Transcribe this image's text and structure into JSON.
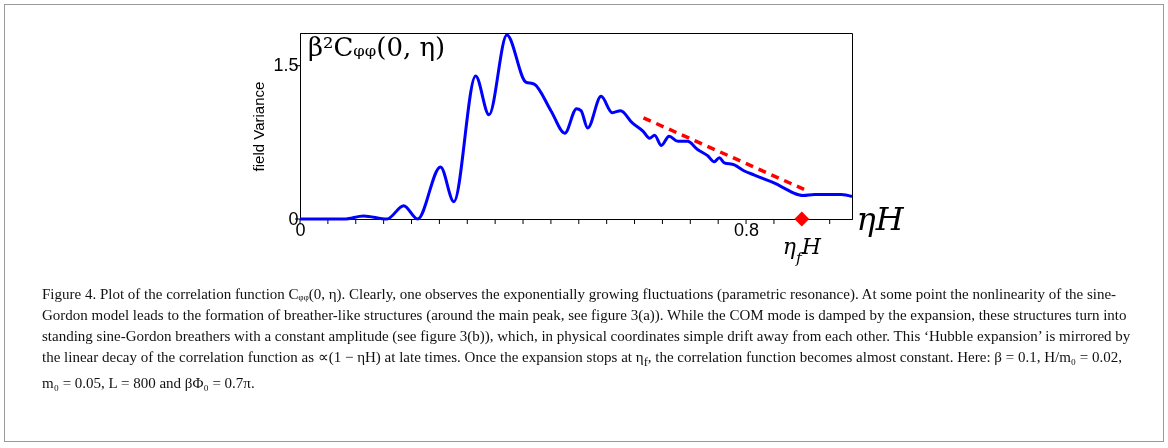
{
  "chart_data": {
    "type": "line",
    "xlabel": "ηH",
    "ylabel": "field Variance",
    "xlim": [
      0,
      0.99
    ],
    "ylim": [
      0,
      1.82
    ],
    "xticks": [
      0,
      {
        "value": 0.05,
        "label": null
      },
      {
        "value": 0.1,
        "label": null
      },
      {
        "value": 0.15,
        "label": null
      },
      {
        "value": 0.2,
        "label": null
      },
      {
        "value": 0.25,
        "label": null
      },
      {
        "value": 0.3,
        "label": null
      },
      {
        "value": 0.35,
        "label": null
      },
      {
        "value": 0.4,
        "label": null
      },
      {
        "value": 0.45,
        "label": null
      },
      {
        "value": 0.5,
        "label": null
      },
      {
        "value": 0.55,
        "label": null
      },
      {
        "value": 0.6,
        "label": null
      },
      {
        "value": 0.65,
        "label": null
      },
      {
        "value": 0.7,
        "label": null
      },
      {
        "value": 0.75,
        "label": null
      },
      0.8,
      {
        "value": 0.85,
        "label": null
      },
      {
        "value": 0.9,
        "label": null
      },
      {
        "value": 0.95,
        "label": null
      }
    ],
    "yticks": [
      0,
      1.5
    ],
    "grid": false,
    "series": [
      {
        "color": "#0000ff",
        "x": [
          0,
          0.08,
          0.114,
          0.156,
          0.186,
          0.211,
          0.252,
          0.276,
          0.315,
          0.339,
          0.371,
          0.405,
          0.42,
          0.45,
          0.475,
          0.496,
          0.504,
          0.516,
          0.54,
          0.56,
          0.575,
          0.596,
          0.615,
          0.627,
          0.636,
          0.648,
          0.662,
          0.678,
          0.695,
          0.713,
          0.731,
          0.743,
          0.752,
          0.761,
          0.779,
          0.797,
          0.815,
          0.833,
          0.851,
          0.869,
          0.887,
          0.902,
          0.923,
          0.947,
          0.971,
          0.99
        ],
        "values": [
          0,
          0,
          0.03,
          0,
          0.13,
          0,
          0.51,
          0.17,
          1.4,
          1.02,
          1.8,
          1.34,
          1.32,
          1.06,
          0.84,
          1.08,
          1.06,
          0.89,
          1.2,
          1.04,
          1.06,
          0.94,
          0.86,
          0.79,
          0.82,
          0.72,
          0.81,
          0.76,
          0.76,
          0.68,
          0.62,
          0.56,
          0.6,
          0.55,
          0.53,
          0.47,
          0.43,
          0.39,
          0.35,
          0.3,
          0.25,
          0.23,
          0.24,
          0.24,
          0.24,
          0.22
        ]
      },
      {
        "type": "line",
        "color": "#ff0000",
        "line_style": "dashed",
        "x": [
          0.616,
          0.904
        ],
        "values": [
          0.99,
          0.29
        ]
      },
      {
        "type": "scatter",
        "color": "#ff0000",
        "marker": "diamond",
        "x": [
          0.9
        ],
        "values": [
          0
        ]
      }
    ],
    "annotations": [
      "β²Cᵩᵩ(0, η)",
      {
        "text": "η$_{f}$H",
        "x": 0.9,
        "y": 0
      },
      "Figure 4. Plot of the correlation function Cᵩᵩ(0, η). Clearly, one observes the exponentially growing fluctuations (parametric resonance). At some point the nonlinearity of the sine-Gordon model leads to the formation of breather-like structures (around the main peak, see figure 3(a)). While the COM mode is damped by the expansion, these structures turn into standing sine-Gordon breathers with a constant amplitude (see figure 3(b)), which, in physical coordinates simple drift away from each other. This ‘Hubble expansion’ is mirrored by the linear decay of the correlation function as ∝(1 − ηH) at late times. Once the expansion stops at η$_{f}$, the correlation function becomes almost constant. Here: β = 0.1, H/m₀ = 0.02, m₀ = 0.05, L = 800 and βΦ₀ = 0.7π."
    ]
  }
}
